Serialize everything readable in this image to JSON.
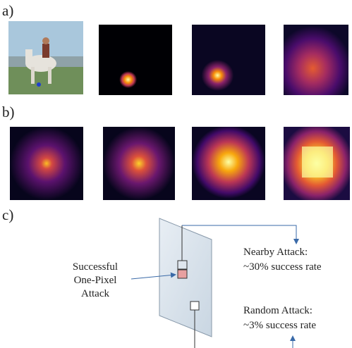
{
  "panels": {
    "a": "a)",
    "b": "b)",
    "c": "c)"
  },
  "diagram": {
    "one_pixel_label": [
      "Successful",
      "One-Pixel",
      "Attack"
    ],
    "nearby": {
      "title": "Nearby Attack:",
      "rate": "~30% success rate"
    },
    "random": {
      "title": "Random Attack:",
      "rate": "~3% success rate"
    }
  }
}
